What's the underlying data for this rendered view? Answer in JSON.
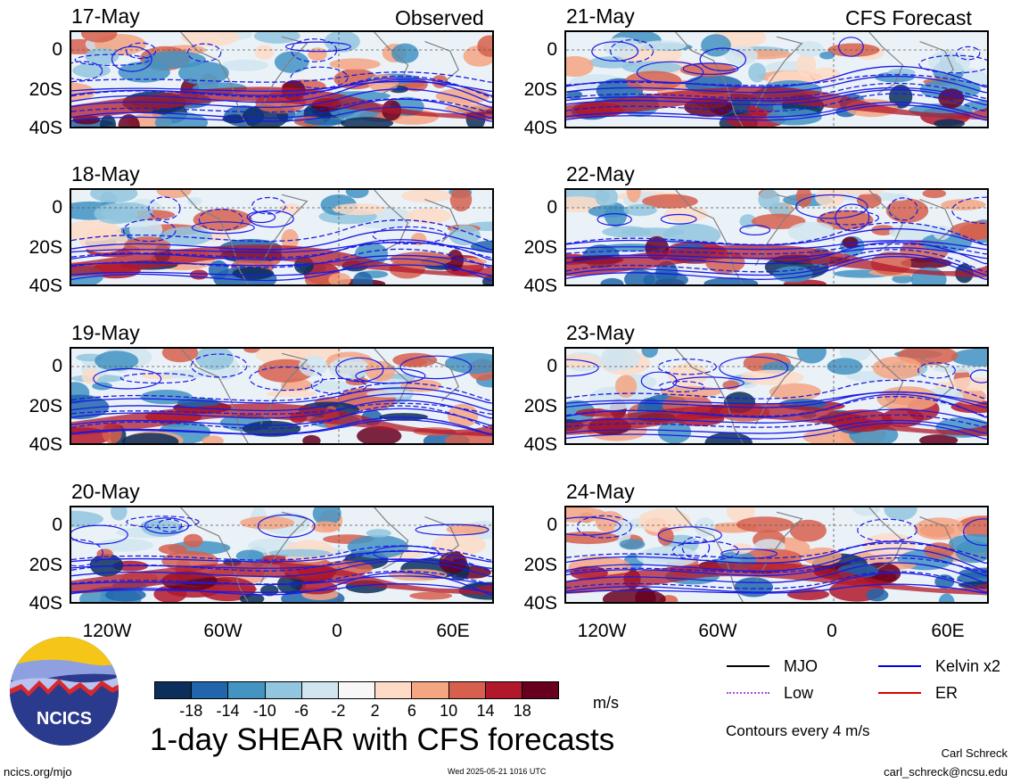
{
  "observed_label": "Observed",
  "forecast_label": "CFS Forecast",
  "lat_ticks": [
    "0",
    "20S",
    "40S"
  ],
  "lon_ticks": [
    "120W",
    "60W",
    "0",
    "60E"
  ],
  "chart_data": {
    "type": "heatmap",
    "title": "1-day SHEAR with CFS forecasts",
    "panels": [
      {
        "column": "Observed",
        "date": "17-May"
      },
      {
        "column": "Observed",
        "date": "18-May"
      },
      {
        "column": "Observed",
        "date": "19-May"
      },
      {
        "column": "Observed",
        "date": "20-May"
      },
      {
        "column": "CFS Forecast",
        "date": "21-May"
      },
      {
        "column": "CFS Forecast",
        "date": "22-May"
      },
      {
        "column": "CFS Forecast",
        "date": "23-May"
      },
      {
        "column": "CFS Forecast",
        "date": "24-May"
      }
    ],
    "colorbar": {
      "unit": "m/s",
      "tick_labels": [
        "-18",
        "-14",
        "-10",
        "-6",
        "-2",
        "2",
        "6",
        "10",
        "14",
        "18"
      ],
      "colors": [
        "#0b2f5a",
        "#2166ac",
        "#4393c3",
        "#92c5de",
        "#d1e5f0",
        "#f7f7f7",
        "#fddbc7",
        "#f4a582",
        "#d6604d",
        "#b2182b",
        "#67001f"
      ]
    },
    "contour_legend": [
      {
        "name": "MJO",
        "color": "#000000"
      },
      {
        "name": "Kelvin x2",
        "color": "#0000dd"
      },
      {
        "name": "Low",
        "color": "#a64bd6"
      },
      {
        "name": "ER",
        "color": "#dd0000"
      }
    ],
    "contour_note": "Contours every 4 m/s"
  },
  "footer": {
    "logo_text": "NCICS",
    "url": "ncics.org/mjo",
    "timestamp": "Wed 2025-05-21 1016 UTC",
    "author": "Carl Schreck",
    "email": "carl_schreck@ncsu.edu"
  }
}
